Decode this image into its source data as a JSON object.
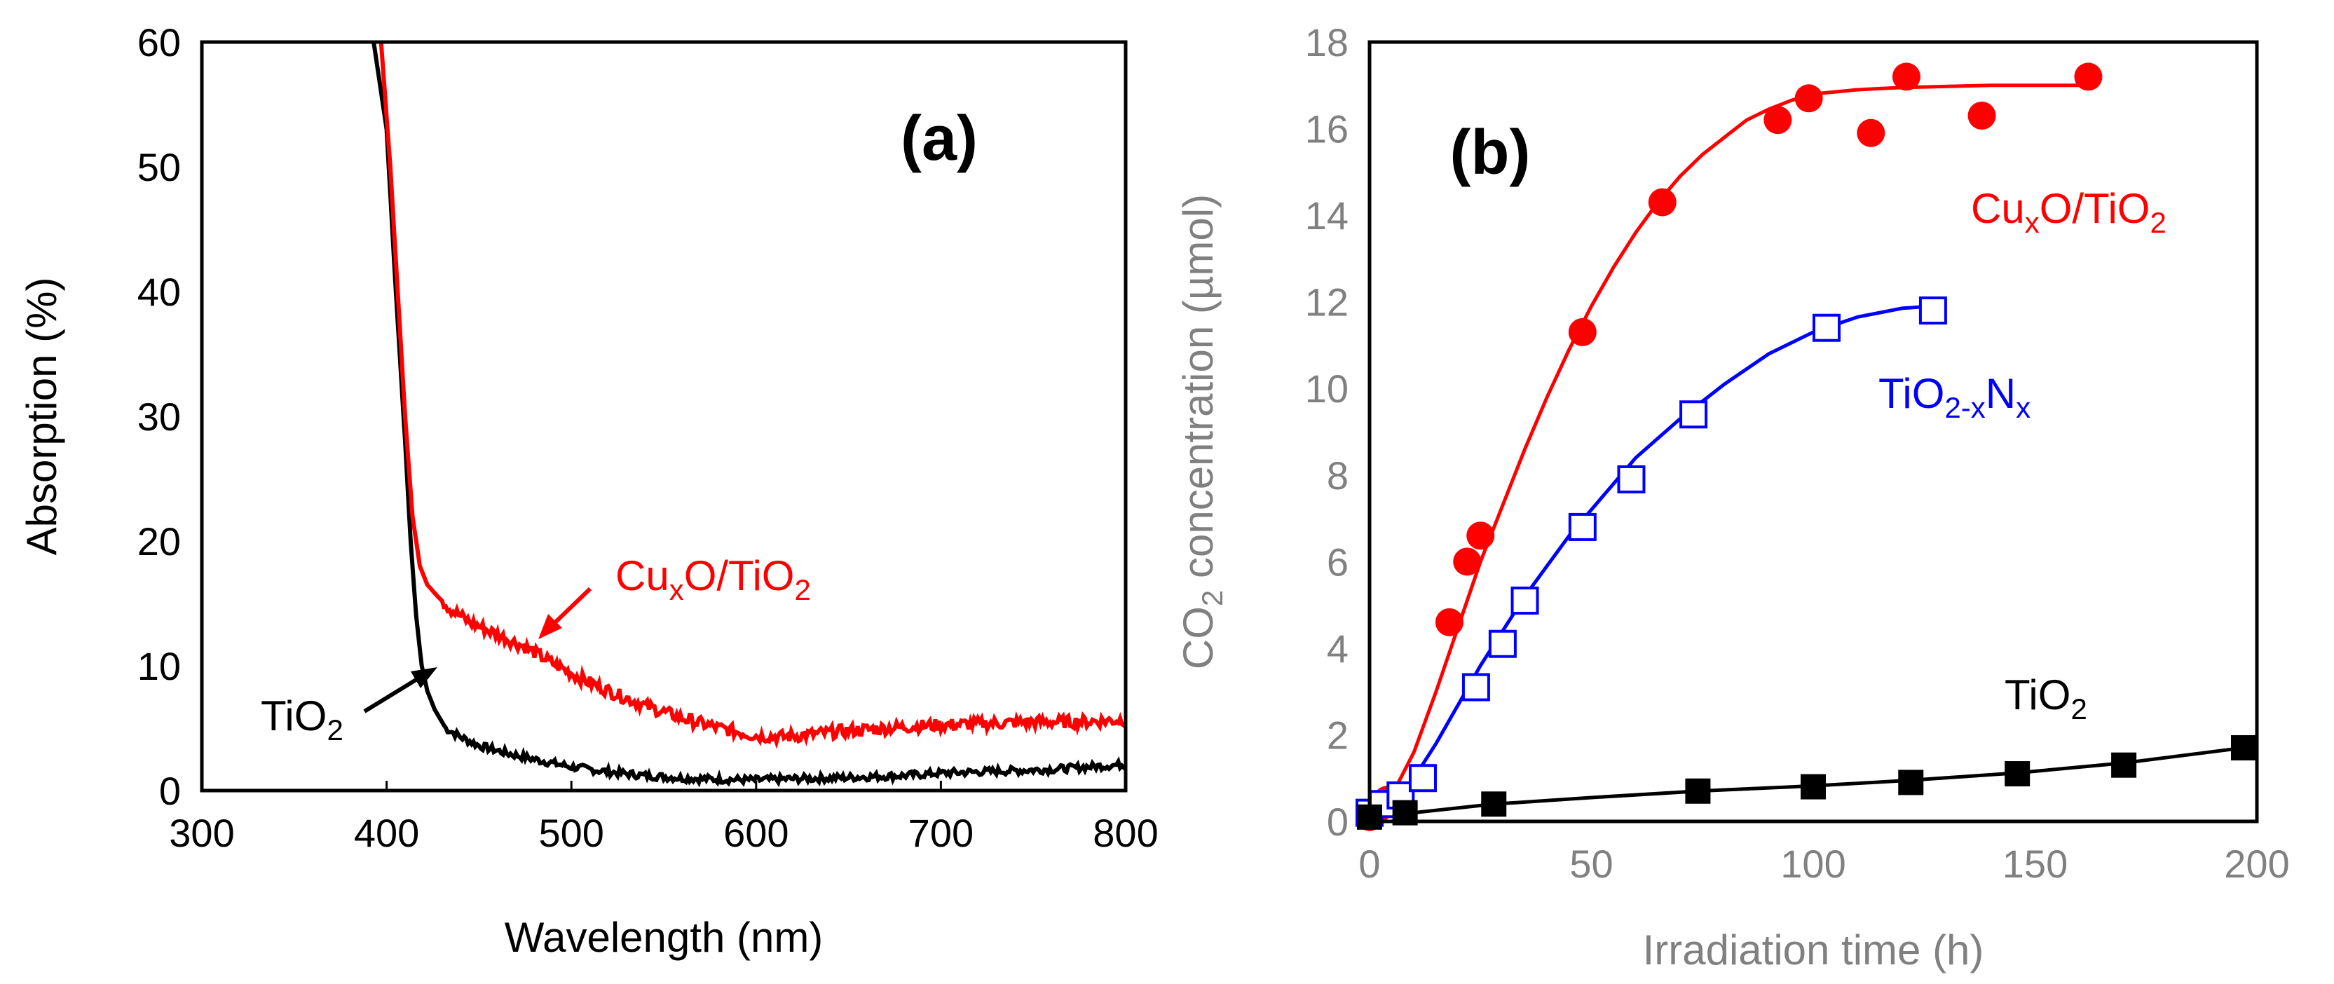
{
  "chart_data": [
    {
      "type": "line",
      "panel_label": "(a)",
      "xlabel": "Wavelength (nm)",
      "ylabel": "Absorption (%)",
      "xlim": [
        300,
        800
      ],
      "ylim": [
        0,
        60
      ],
      "xticks": [
        "300",
        "400",
        "500",
        "600",
        "700",
        "800"
      ],
      "yticks": [
        "0",
        "10",
        "20",
        "30",
        "40",
        "50",
        "60"
      ],
      "grid": false,
      "series": [
        {
          "name": "TiO2",
          "color": "#000000",
          "points": [
            [
              393,
              60
            ],
            [
              400,
              53
            ],
            [
              405,
              40
            ],
            [
              410,
              28
            ],
            [
              413,
              20
            ],
            [
              416,
              14
            ],
            [
              419,
              10
            ],
            [
              422,
              8
            ],
            [
              426,
              6.5
            ],
            [
              432,
              5
            ],
            [
              440,
              4.3
            ],
            [
              450,
              3.6
            ],
            [
              465,
              3
            ],
            [
              480,
              2.5
            ],
            [
              500,
              1.9
            ],
            [
              520,
              1.5
            ],
            [
              540,
              1.2
            ],
            [
              560,
              1.0
            ],
            [
              580,
              0.9
            ],
            [
              600,
              0.85
            ],
            [
              620,
              0.95
            ],
            [
              640,
              1.0
            ],
            [
              660,
              1.1
            ],
            [
              680,
              1.2
            ],
            [
              700,
              1.4
            ],
            [
              720,
              1.5
            ],
            [
              740,
              1.6
            ],
            [
              760,
              1.7
            ],
            [
              780,
              1.9
            ],
            [
              800,
              2.1
            ]
          ]
        },
        {
          "name": "CuxO/TiO2",
          "color": "#ff0000",
          "points": [
            [
              397,
              60
            ],
            [
              402,
              50
            ],
            [
              406,
              40
            ],
            [
              410,
              30
            ],
            [
              414,
              22
            ],
            [
              418,
              18
            ],
            [
              422,
              16.5
            ],
            [
              428,
              15.5
            ],
            [
              435,
              14.5
            ],
            [
              445,
              13.5
            ],
            [
              460,
              12.5
            ],
            [
              475,
              11.5
            ],
            [
              490,
              10.2
            ],
            [
              505,
              9.0
            ],
            [
              520,
              8.0
            ],
            [
              540,
              6.8
            ],
            [
              560,
              5.8
            ],
            [
              580,
              5.0
            ],
            [
              600,
              4.4
            ],
            [
              615,
              4.3
            ],
            [
              630,
              4.5
            ],
            [
              650,
              4.8
            ],
            [
              670,
              5.0
            ],
            [
              690,
              5.2
            ],
            [
              710,
              5.3
            ],
            [
              730,
              5.4
            ],
            [
              750,
              5.5
            ],
            [
              770,
              5.5
            ],
            [
              790,
              5.6
            ],
            [
              800,
              5.7
            ]
          ]
        }
      ],
      "labels": [
        {
          "text": "TiO",
          "sub": "2",
          "color": "#000000"
        },
        {
          "text": "Cu",
          "sub": "x",
          "rest": "O/TiO",
          "sub2": "2",
          "color": "#ff0000"
        }
      ]
    },
    {
      "type": "scatter",
      "panel_label": "(b)",
      "xlabel": "Irradiation time (h)",
      "ylabel_main": "CO",
      "ylabel_sub": "2",
      "ylabel_rest": " concentration (µmol)",
      "xlim": [
        0,
        200
      ],
      "ylim": [
        0,
        18
      ],
      "xticks": [
        "0",
        "50",
        "100",
        "150",
        "200"
      ],
      "yticks": [
        "0",
        "2",
        "4",
        "6",
        "8",
        "10",
        "12",
        "14",
        "16",
        "18"
      ],
      "grid": false,
      "series": [
        {
          "name": "CuxO/TiO2",
          "marker": "circle-filled",
          "color": "#ff0000",
          "x": [
            0,
            1,
            2,
            4,
            18,
            22,
            25,
            48,
            66,
            92,
            99,
            113,
            121,
            138,
            162
          ],
          "y": [
            0.1,
            0.2,
            0.3,
            0.5,
            4.6,
            6.0,
            6.6,
            11.3,
            14.3,
            16.2,
            16.7,
            15.9,
            17.2,
            16.3,
            17.2
          ],
          "fit": [
            [
              0,
              0.1
            ],
            [
              5,
              0.6
            ],
            [
              10,
              1.6
            ],
            [
              15,
              3.0
            ],
            [
              20,
              4.5
            ],
            [
              25,
              6.0
            ],
            [
              30,
              7.3
            ],
            [
              35,
              8.6
            ],
            [
              40,
              9.8
            ],
            [
              45,
              10.9
            ],
            [
              50,
              11.9
            ],
            [
              55,
              12.8
            ],
            [
              60,
              13.6
            ],
            [
              65,
              14.3
            ],
            [
              70,
              14.9
            ],
            [
              75,
              15.4
            ],
            [
              80,
              15.8
            ],
            [
              85,
              16.2
            ],
            [
              90,
              16.45
            ],
            [
              95,
              16.65
            ],
            [
              100,
              16.8
            ],
            [
              110,
              16.9
            ],
            [
              120,
              16.95
            ],
            [
              140,
              17.0
            ],
            [
              162,
              17.0
            ]
          ]
        },
        {
          "name": "TiO2-xNx",
          "marker": "square-open",
          "color": "#0000ff",
          "x": [
            0,
            3,
            7,
            12,
            24,
            30,
            35,
            48,
            59,
            73,
            103,
            127
          ],
          "y": [
            0.2,
            0.4,
            0.6,
            1.0,
            3.1,
            4.1,
            5.1,
            6.8,
            7.9,
            9.4,
            11.4,
            11.8
          ],
          "fit": [
            [
              0,
              0.1
            ],
            [
              5,
              0.4
            ],
            [
              10,
              1.0
            ],
            [
              15,
              1.8
            ],
            [
              20,
              2.7
            ],
            [
              25,
              3.6
            ],
            [
              30,
              4.4
            ],
            [
              35,
              5.2
            ],
            [
              40,
              5.9
            ],
            [
              45,
              6.6
            ],
            [
              50,
              7.2
            ],
            [
              55,
              7.8
            ],
            [
              60,
              8.4
            ],
            [
              70,
              9.3
            ],
            [
              80,
              10.1
            ],
            [
              90,
              10.8
            ],
            [
              100,
              11.3
            ],
            [
              110,
              11.65
            ],
            [
              120,
              11.85
            ],
            [
              127,
              11.9
            ]
          ]
        },
        {
          "name": "TiO2",
          "marker": "square-filled",
          "color": "#000000",
          "x": [
            0,
            8,
            28,
            74,
            100,
            122,
            146,
            170,
            197
          ],
          "y": [
            0.1,
            0.2,
            0.4,
            0.7,
            0.8,
            0.9,
            1.1,
            1.3,
            1.7
          ],
          "fit": [
            [
              0,
              0.1
            ],
            [
              10,
              0.2
            ],
            [
              28,
              0.4
            ],
            [
              50,
              0.55
            ],
            [
              74,
              0.7
            ],
            [
              100,
              0.82
            ],
            [
              122,
              0.95
            ],
            [
              146,
              1.12
            ],
            [
              170,
              1.35
            ],
            [
              197,
              1.7
            ]
          ]
        }
      ],
      "labels": [
        {
          "text": "Cu",
          "sub": "x",
          "rest": "O/TiO",
          "sub2": "2",
          "color": "#ff0000"
        },
        {
          "text": "TiO",
          "sub": "2-x",
          "rest": "N",
          "sub2": "x",
          "color": "#0000ff"
        },
        {
          "text": "TiO",
          "sub": "2",
          "color": "#000000"
        }
      ]
    }
  ]
}
